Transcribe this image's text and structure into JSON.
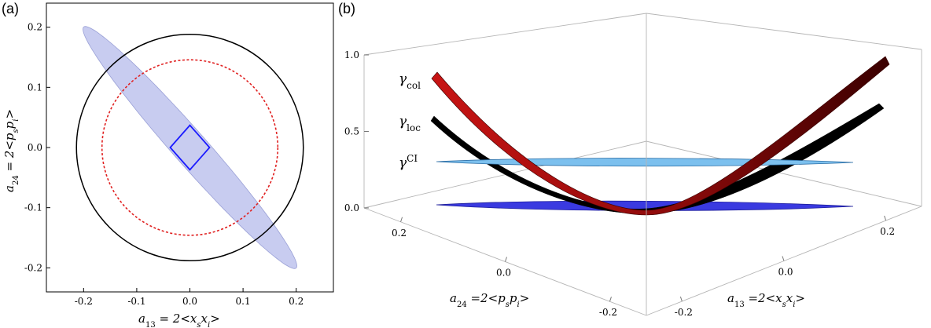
{
  "chart_data": [
    {
      "panel": "(a)",
      "type": "scatter",
      "xlabel": "a13 = 2<xsxi>",
      "ylabel": "a24 = 2<pspi>",
      "xlim": [
        -0.27,
        0.27
      ],
      "ylim": [
        -0.24,
        0.24
      ],
      "xticks": [
        "-0.2",
        "-0.1",
        "0.0",
        "0.1",
        "0.2"
      ],
      "yticks": [
        "0.2",
        "0.1",
        "0.0",
        "-0.1",
        "-0.2"
      ],
      "shapes": [
        {
          "name": "ellipse",
          "center": [
            0,
            0
          ],
          "semi_major": 0.283,
          "semi_minor": 0.03,
          "angle_deg": -45,
          "color": "#c8ccf0"
        },
        {
          "name": "black circle",
          "center": [
            0,
            0
          ],
          "radius": 0.2,
          "color": "#000000"
        },
        {
          "name": "red dotted circle",
          "center": [
            0,
            0
          ],
          "radius": 0.155,
          "color": "#e02020"
        },
        {
          "name": "blue square",
          "vertices": [
            [
              -0.037,
              0
            ],
            [
              0,
              0.037
            ],
            [
              0.037,
              0
            ],
            [
              0,
              -0.037
            ]
          ],
          "color": "#1a1aff"
        }
      ]
    },
    {
      "panel": "(b)",
      "type": "surface-3d",
      "zticks": [
        "1.0",
        "0.5",
        "0.0"
      ],
      "y_ticks_left": [
        "0.2",
        "0.0",
        "-0.2"
      ],
      "x_ticks_right": [
        "0.2",
        "0.0",
        "-0.2"
      ],
      "xlabel": "a13 =2<xsxi>",
      "ylabel": "a24 =2<pspi>",
      "zlim": [
        0,
        1
      ],
      "curve_labels": [
        "γcol",
        "γloc",
        "γCI"
      ],
      "colors": {
        "col": "#b51010",
        "loc": "#000000",
        "ci_plane": "#7cc0ee",
        "base_plane": "#3a3ae0"
      }
    }
  ],
  "labels": {
    "a_axis_x": {
      "main": "a",
      "sub": "13",
      "eq": " = 2<",
      "v1": "x",
      "s1": "s",
      "v2": "x",
      "s2": "i",
      "close": ">"
    },
    "a_axis_y": {
      "main": "a",
      "sub": "24",
      "eq": " = 2<",
      "v1": "p",
      "s1": "s",
      "v2": "p",
      "s2": "i",
      "close": ">"
    },
    "b_axis_x": {
      "main": "a",
      "sub": "13",
      "eq": " =2<",
      "v1": "x",
      "s1": "s",
      "v2": "x",
      "s2": "i",
      "close": ">"
    },
    "b_axis_y": {
      "main": "a",
      "sub": "24",
      "eq": " =2<",
      "v1": "p",
      "s1": "s",
      "v2": "p",
      "s2": "i",
      "close": ">"
    },
    "g_col": {
      "main": "γ",
      "script": "col"
    },
    "g_loc": {
      "main": "γ",
      "script": "loc"
    },
    "g_ci": {
      "main": "γ",
      "script": "CI"
    }
  }
}
